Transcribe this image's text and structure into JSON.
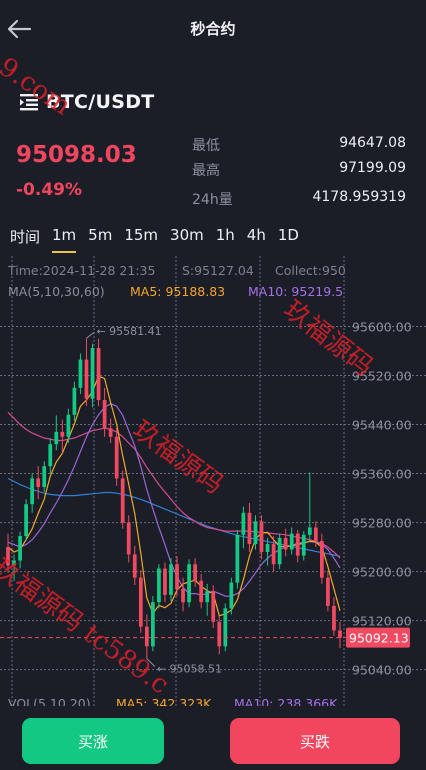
{
  "header": {
    "title": "秒合约",
    "back_icon": "arrow-left-icon"
  },
  "pair": {
    "name": "BTC/USDT",
    "menu_icon": "list-icon"
  },
  "ticker": {
    "last_price": "95098.03",
    "change_pct": "-0.49%",
    "low_label": "最低",
    "low_value": "94647.08",
    "high_label": "最高",
    "high_value": "97199.09",
    "vol_label": "24h量",
    "vol_value": "4178.959319"
  },
  "timeframes": {
    "label": "时间",
    "items": [
      "1m",
      "5m",
      "15m",
      "30m",
      "1h",
      "4h",
      "1D"
    ],
    "selected": "1m"
  },
  "chart_info": {
    "time": "Time:2024-11-28 21:35",
    "s": "S:95127.04",
    "collect": "Collect:950",
    "ma_header": "MA(5,10,30,60)",
    "ma5": "MA5: 95188.83",
    "ma10": "MA10: 95219.5",
    "vol_header": "VOL(5,10,20)",
    "vol_ma5": "MA5: 342.323K",
    "vol_ma10": "MA10: 238.366K",
    "max_marker": "95581.41",
    "min_marker": "95058.51",
    "current_price_tag": "95092.13"
  },
  "chart_data": {
    "type": "candlestick",
    "y_ticks": [
      95600.0,
      95520.0,
      95440.0,
      95360.0,
      95280.0,
      95200.0,
      95120.0,
      95040.0
    ],
    "y_tick_labels": [
      "95600.00",
      "95520.00",
      "95440.00",
      "95360.00",
      "95280.00",
      "95200.00",
      "95120.00",
      "95040.00"
    ],
    "ylim": [
      95010,
      95640
    ],
    "current_price": 95092.13,
    "up_color": "#14c985",
    "down_color": "#f04a62",
    "candles": [
      {
        "o": 95240,
        "h": 95262,
        "l": 95198,
        "c": 95210
      },
      {
        "o": 95210,
        "h": 95228,
        "l": 95185,
        "c": 95218
      },
      {
        "o": 95218,
        "h": 95265,
        "l": 95205,
        "c": 95258
      },
      {
        "o": 95258,
        "h": 95318,
        "l": 95250,
        "c": 95310
      },
      {
        "o": 95310,
        "h": 95360,
        "l": 95296,
        "c": 95352
      },
      {
        "o": 95352,
        "h": 95372,
        "l": 95318,
        "c": 95338
      },
      {
        "o": 95338,
        "h": 95380,
        "l": 95330,
        "c": 95372
      },
      {
        "o": 95372,
        "h": 95418,
        "l": 95360,
        "c": 95408
      },
      {
        "o": 95408,
        "h": 95455,
        "l": 95398,
        "c": 95428
      },
      {
        "o": 95428,
        "h": 95448,
        "l": 95395,
        "c": 95420
      },
      {
        "o": 95420,
        "h": 95466,
        "l": 95410,
        "c": 95456
      },
      {
        "o": 95456,
        "h": 95510,
        "l": 95446,
        "c": 95500
      },
      {
        "o": 95500,
        "h": 95556,
        "l": 95490,
        "c": 95546
      },
      {
        "o": 95546,
        "h": 95581,
        "l": 95470,
        "c": 95482
      },
      {
        "o": 95482,
        "h": 95572,
        "l": 95468,
        "c": 95565
      },
      {
        "o": 95565,
        "h": 95580,
        "l": 95470,
        "c": 95480
      },
      {
        "o": 95480,
        "h": 95500,
        "l": 95420,
        "c": 95434
      },
      {
        "o": 95434,
        "h": 95450,
        "l": 95410,
        "c": 95420
      },
      {
        "o": 95420,
        "h": 95435,
        "l": 95340,
        "c": 95352
      },
      {
        "o": 95352,
        "h": 95365,
        "l": 95270,
        "c": 95280
      },
      {
        "o": 95280,
        "h": 95292,
        "l": 95215,
        "c": 95228
      },
      {
        "o": 95228,
        "h": 95242,
        "l": 95178,
        "c": 95190
      },
      {
        "o": 95190,
        "h": 95202,
        "l": 95100,
        "c": 95110
      },
      {
        "o": 95110,
        "h": 95130,
        "l": 95058,
        "c": 95078
      },
      {
        "o": 95078,
        "h": 95160,
        "l": 95070,
        "c": 95150
      },
      {
        "o": 95150,
        "h": 95212,
        "l": 95140,
        "c": 95205
      },
      {
        "o": 95205,
        "h": 95215,
        "l": 95150,
        "c": 95162
      },
      {
        "o": 95162,
        "h": 95222,
        "l": 95152,
        "c": 95212
      },
      {
        "o": 95212,
        "h": 95225,
        "l": 95160,
        "c": 95172
      },
      {
        "o": 95172,
        "h": 95190,
        "l": 95135,
        "c": 95150
      },
      {
        "o": 95150,
        "h": 95220,
        "l": 95142,
        "c": 95212
      },
      {
        "o": 95212,
        "h": 95222,
        "l": 95175,
        "c": 95185
      },
      {
        "o": 95185,
        "h": 95196,
        "l": 95140,
        "c": 95150
      },
      {
        "o": 95150,
        "h": 95180,
        "l": 95128,
        "c": 95168
      },
      {
        "o": 95168,
        "h": 95178,
        "l": 95108,
        "c": 95118
      },
      {
        "o": 95118,
        "h": 95128,
        "l": 95065,
        "c": 95078
      },
      {
        "o": 95078,
        "h": 95148,
        "l": 95070,
        "c": 95140
      },
      {
        "o": 95140,
        "h": 95190,
        "l": 95130,
        "c": 95182
      },
      {
        "o": 95182,
        "h": 95268,
        "l": 95172,
        "c": 95260
      },
      {
        "o": 95260,
        "h": 95306,
        "l": 95238,
        "c": 95296
      },
      {
        "o": 95296,
        "h": 95312,
        "l": 95232,
        "c": 95245
      },
      {
        "o": 95245,
        "h": 95292,
        "l": 95236,
        "c": 95282
      },
      {
        "o": 95282,
        "h": 95292,
        "l": 95220,
        "c": 95232
      },
      {
        "o": 95232,
        "h": 95255,
        "l": 95210,
        "c": 95245
      },
      {
        "o": 95245,
        "h": 95258,
        "l": 95200,
        "c": 95212
      },
      {
        "o": 95212,
        "h": 95262,
        "l": 95204,
        "c": 95255
      },
      {
        "o": 95255,
        "h": 95270,
        "l": 95225,
        "c": 95236
      },
      {
        "o": 95236,
        "h": 95272,
        "l": 95228,
        "c": 95262
      },
      {
        "o": 95262,
        "h": 95268,
        "l": 95215,
        "c": 95226
      },
      {
        "o": 95226,
        "h": 95266,
        "l": 95218,
        "c": 95260
      },
      {
        "o": 95260,
        "h": 95362,
        "l": 95250,
        "c": 95272
      },
      {
        "o": 95272,
        "h": 95282,
        "l": 95240,
        "c": 95250
      },
      {
        "o": 95250,
        "h": 95262,
        "l": 95180,
        "c": 95190
      },
      {
        "o": 95190,
        "h": 95202,
        "l": 95135,
        "c": 95144
      },
      {
        "o": 95144,
        "h": 95158,
        "l": 95095,
        "c": 95104
      },
      {
        "o": 95104,
        "h": 95118,
        "l": 95075,
        "c": 95092
      }
    ],
    "ma5": [
      95240,
      95232,
      95236,
      95252,
      95270,
      95295,
      95318,
      95356,
      95379,
      95393,
      95417,
      95441,
      95470,
      95480,
      95494,
      95519,
      95515,
      95476,
      95440,
      95389,
      95343,
      95294,
      95230,
      95157,
      95132,
      95145,
      95141,
      95148,
      95170,
      95180,
      95183,
      95186,
      95176,
      95169,
      95164,
      95128,
      95131,
      95137,
      95154,
      95187,
      95225,
      95253,
      95263,
      95264,
      95252,
      95241,
      95241,
      95242,
      95244,
      95246,
      95250,
      95248,
      95240,
      95208,
      95172,
      95136
    ],
    "ma10": [
      95248,
      95244,
      95240,
      95244,
      95252,
      95264,
      95278,
      95296,
      95312,
      95330,
      95350,
      95372,
      95396,
      95420,
      95440,
      95456,
      95468,
      95474,
      95470,
      95455,
      95430,
      95405,
      95372,
      95334,
      95302,
      95272,
      95244,
      95214,
      95192,
      95174,
      95164,
      95164,
      95162,
      95164,
      95168,
      95164,
      95160,
      95160,
      95164,
      95172,
      95184,
      95198,
      95212,
      95222,
      95230,
      95236,
      95240,
      95243,
      95246,
      95248,
      95249,
      95248,
      95245,
      95236,
      95222,
      95206
    ],
    "ma30": [
      95460,
      95450,
      95440,
      95432,
      95426,
      95422,
      95418,
      95416,
      95414,
      95414,
      95416,
      95418,
      95422,
      95426,
      95430,
      95432,
      95434,
      95432,
      95428,
      95420,
      95410,
      95400,
      95386,
      95370,
      95356,
      95342,
      95330,
      95318,
      95306,
      95296,
      95288,
      95282,
      95276,
      95272,
      95270,
      95268,
      95266,
      95266,
      95266,
      95266,
      95266,
      95265,
      95264,
      95263,
      95262,
      95261,
      95260,
      95258,
      95256,
      95254,
      95252,
      95249,
      95246,
      95240,
      95232,
      95222
    ],
    "ma60": [
      95352,
      95347,
      95342,
      95338,
      95334,
      95331,
      95328,
      95326,
      95325,
      95324,
      95324,
      95324,
      95325,
      95326,
      95327,
      95328,
      95329,
      95329,
      95328,
      95326,
      95324,
      95321,
      95318,
      95314,
      95310,
      95306,
      95302,
      95298,
      95294,
      95290,
      95286,
      95282,
      95278,
      95274,
      95271,
      95268,
      95265,
      95262,
      95259,
      95257,
      95255,
      95253,
      95251,
      95249,
      95247,
      95245,
      95243,
      95241,
      95239,
      95237,
      95235,
      95233,
      95231,
      95229,
      95227,
      95225
    ]
  }
}
